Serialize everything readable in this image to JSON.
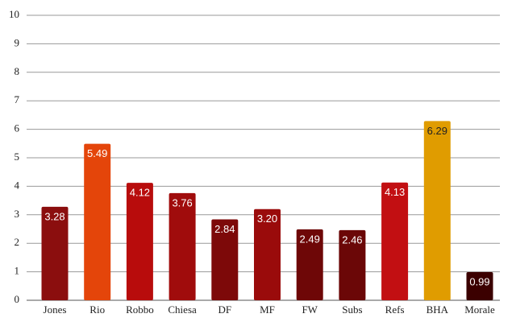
{
  "chart_data": {
    "type": "bar",
    "categories": [
      "Jones",
      "Rio",
      "Robbo",
      "Chiesa",
      "DF",
      "MF",
      "FW",
      "Subs",
      "Refs",
      "BHA",
      "Morale"
    ],
    "values": [
      3.28,
      5.49,
      4.12,
      3.76,
      2.84,
      3.2,
      2.49,
      2.46,
      4.13,
      6.29,
      0.99
    ],
    "value_labels": [
      "3.28",
      "5.49",
      "4.12",
      "3.76",
      "2.84",
      "3.20",
      "2.49",
      "2.46",
      "4.13",
      "6.29",
      "0.99"
    ],
    "colors": [
      "#8b0e0e",
      "#e4450a",
      "#b80c0c",
      "#a00c0c",
      "#7d0909",
      "#9a0b0b",
      "#6e0707",
      "#6b0707",
      "#c20f12",
      "#e09c00",
      "#3b0000"
    ],
    "ylim": [
      0,
      10
    ],
    "yticks": [
      0,
      1,
      2,
      3,
      4,
      5,
      6,
      7,
      8,
      9,
      10
    ],
    "grid": true
  }
}
